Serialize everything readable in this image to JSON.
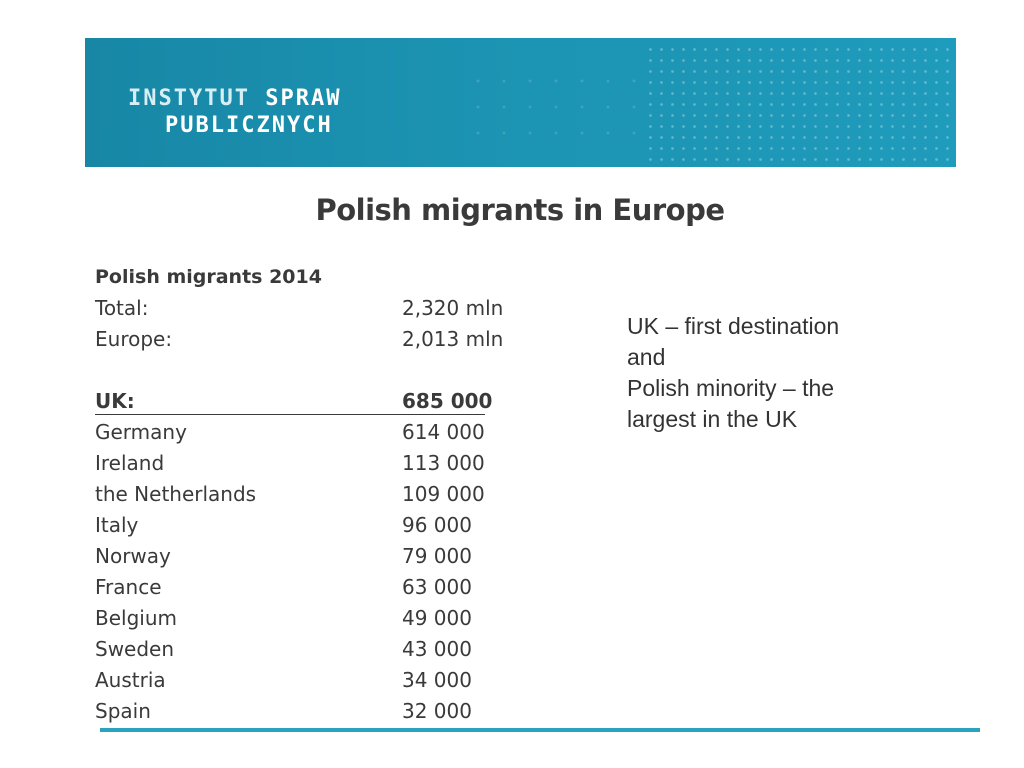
{
  "banner": {
    "logo_line1_a": "INSTYTUT ",
    "logo_line1_b": "SPRAW",
    "logo_line2": "PUBLICZNYCH",
    "color": "#1c93b2"
  },
  "title": "Polish migrants in Europe",
  "table": {
    "heading": "Polish migrants 2014",
    "totals": [
      {
        "label": "Total:",
        "value": "2,320 mln"
      },
      {
        "label": "Europe:",
        "value": "2,013 mln"
      }
    ],
    "countries": [
      {
        "label": "UK:",
        "value": "685 000"
      },
      {
        "label": "Germany",
        "value": "614 000"
      },
      {
        "label": "Ireland",
        "value": "113 000"
      },
      {
        "label": "the Netherlands",
        "value": "109 000"
      },
      {
        "label": "Italy",
        "value": "96 000"
      },
      {
        "label": "Norway",
        "value": "79 000"
      },
      {
        "label": "France",
        "value": "63 000"
      },
      {
        "label": "Belgium",
        "value": "49 000"
      },
      {
        "label": "Sweden",
        "value": "43 000"
      },
      {
        "label": "Austria",
        "value": "34 000"
      },
      {
        "label": "Spain",
        "value": "32 000"
      }
    ]
  },
  "note": {
    "lines": [
      "UK – first destination",
      "and",
      "Polish minority – the",
      "largest in the UK"
    ]
  },
  "accent_color": "#2aa3bf"
}
